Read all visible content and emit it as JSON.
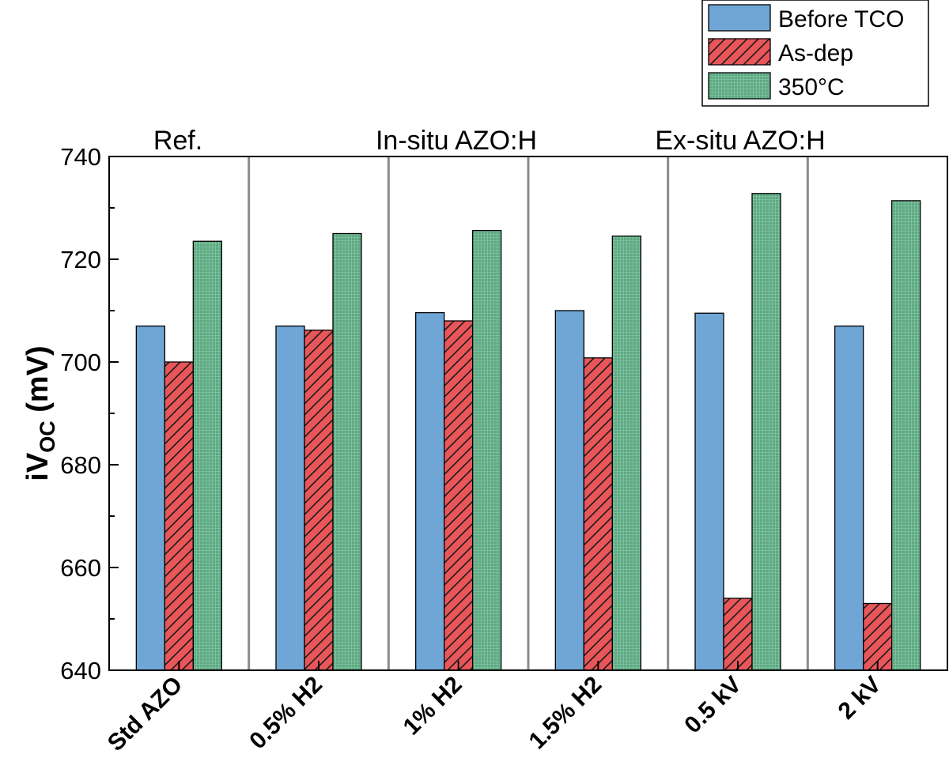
{
  "chart_data": {
    "type": "bar",
    "title": "",
    "xlabel": "",
    "ylabel": "iV",
    "ylabel_sub": "OC",
    "ylabel_unit": " (mV)",
    "ylim": [
      640,
      740
    ],
    "yticks": [
      640,
      660,
      680,
      700,
      720,
      740
    ],
    "categories": [
      "Std AZO",
      "0.5% H2",
      "1% H2",
      "1.5% H2",
      "0.5 kV",
      "2 kV"
    ],
    "series": [
      {
        "name": "Before TCO",
        "color": "#6fa6d6",
        "pattern": "solid",
        "values": [
          707,
          707,
          709.6,
          710,
          709.5,
          707
        ]
      },
      {
        "name": "As-dep",
        "color": "#e8565a",
        "pattern": "hatch",
        "values": [
          700,
          706.2,
          708,
          700.8,
          654,
          653
        ]
      },
      {
        "name": "350°C",
        "color": "#5fa882",
        "pattern": "grid",
        "values": [
          723.5,
          725,
          725.6,
          724.5,
          732.8,
          731.4
        ]
      }
    ],
    "group_labels": [
      "Ref.",
      "In-situ AZO:H",
      "Ex-situ AZO:H"
    ],
    "legend_position": "top-right",
    "grid": false
  }
}
